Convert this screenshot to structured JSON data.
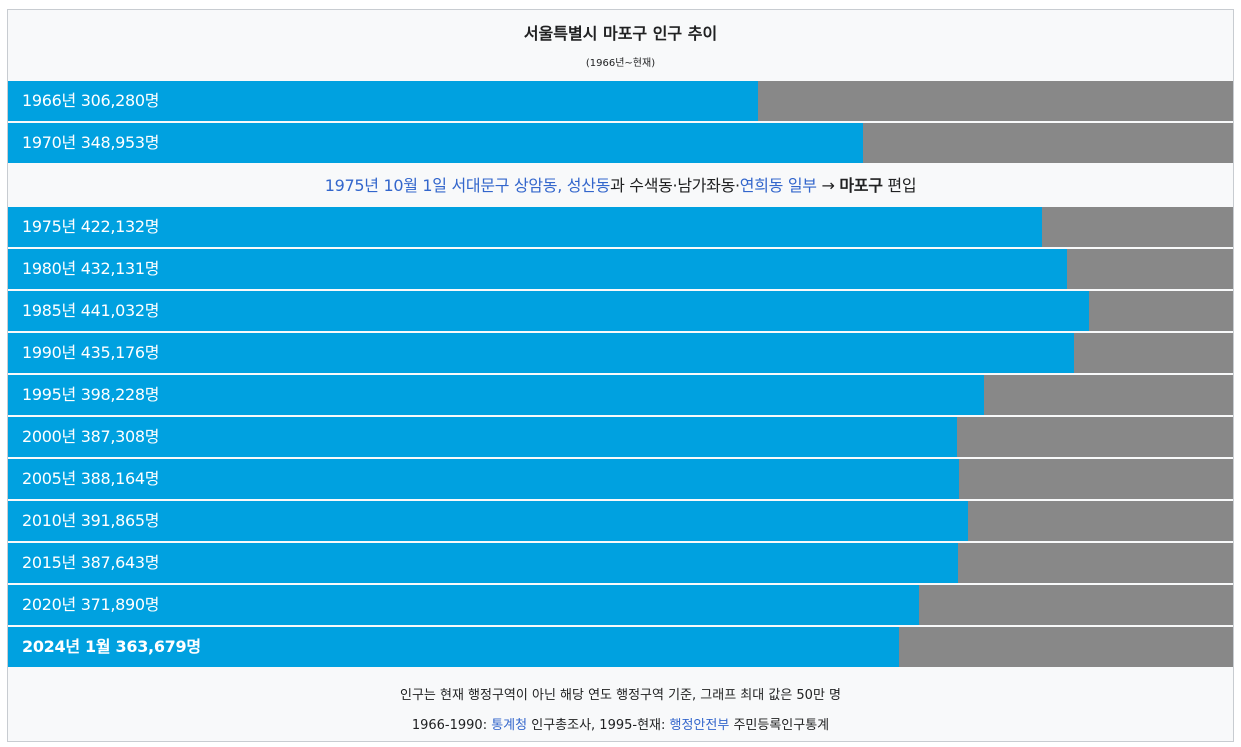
{
  "title": "서울특별시 마포구 인구 추이",
  "subtitle": "(1966년~현재)",
  "note": {
    "link1": "1975년 10월 1일 서대문구 상암동, 성산동",
    "text1": "과 수색동·남가좌동·",
    "link2": "연희동 일부",
    "text2": " → ",
    "strong": "마포구",
    "text3": " 편입"
  },
  "footer": {
    "line1": "인구는 현재 행정구역이 아닌 해당 연도 행정구역 기준, 그래프 최대 값은 50만 명",
    "line2_a": "1966-1990: ",
    "line2_link1": "통계청",
    "line2_b": " 인구총조사, 1995-현재: ",
    "line2_link2": "행정안전부",
    "line2_c": " 주민등록인구통계"
  },
  "colors": {
    "bar": "#00a1e0",
    "track": "#888888",
    "link": "#3366cc"
  },
  "chart_data": {
    "type": "bar",
    "orientation": "horizontal",
    "title": "서울특별시 마포구 인구 추이",
    "subtitle": "(1966년~현재)",
    "xlim": [
      0,
      500000
    ],
    "bars": [
      {
        "label": "1966년 306,280명",
        "year": "1966",
        "value": 306280
      },
      {
        "label": "1970년 348,953명",
        "year": "1970",
        "value": 348953
      },
      {
        "label": "1975년 422,132명",
        "year": "1975",
        "value": 422132
      },
      {
        "label": "1980년 432,131명",
        "year": "1980",
        "value": 432131
      },
      {
        "label": "1985년 441,032명",
        "year": "1985",
        "value": 441032
      },
      {
        "label": "1990년 435,176명",
        "year": "1990",
        "value": 435176
      },
      {
        "label": "1995년 398,228명",
        "year": "1995",
        "value": 398228
      },
      {
        "label": "2000년 387,308명",
        "year": "2000",
        "value": 387308
      },
      {
        "label": "2005년 388,164명",
        "year": "2005",
        "value": 388164
      },
      {
        "label": "2010년 391,865명",
        "year": "2010",
        "value": 391865
      },
      {
        "label": "2015년 387,643명",
        "year": "2015",
        "value": 387643
      },
      {
        "label": "2020년 371,890명",
        "year": "2020",
        "value": 371890
      },
      {
        "label": "2024년 1월 363,679명",
        "year": "2024년 1월",
        "value": 363679,
        "bold": true
      }
    ]
  }
}
